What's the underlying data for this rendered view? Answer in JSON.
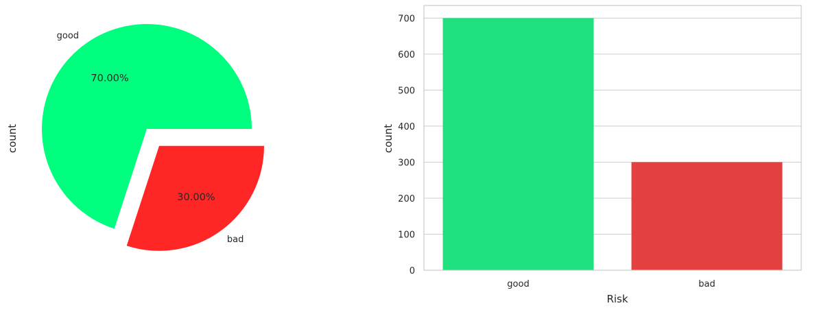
{
  "chart_data": [
    {
      "type": "pie",
      "ylabel": "count",
      "categories": [
        "good",
        "bad"
      ],
      "values": [
        700,
        300
      ],
      "percent_labels": [
        "70.00%",
        "30.00%"
      ],
      "explode": [
        0,
        0.2
      ],
      "colors": [
        "#00ff7f",
        "#ff2626"
      ]
    },
    {
      "type": "bar",
      "xlabel": "Risk",
      "ylabel": "count",
      "categories": [
        "good",
        "bad"
      ],
      "values": [
        700,
        300
      ],
      "colors": [
        "#1fe07f",
        "#e34040"
      ],
      "ylim": [
        0,
        735
      ],
      "yticks": [
        0,
        100,
        200,
        300,
        400,
        500,
        600,
        700
      ],
      "grid": true
    }
  ]
}
